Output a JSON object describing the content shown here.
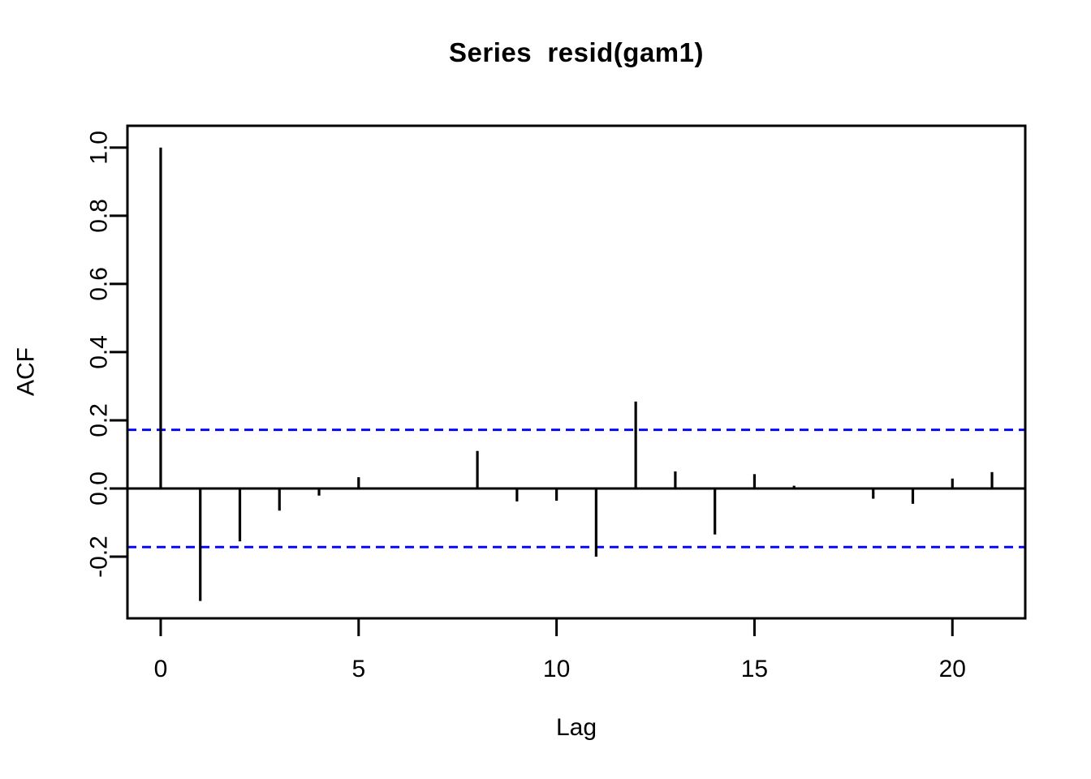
{
  "figure": {
    "background": "#FFFFFF"
  },
  "chart_data": {
    "type": "bar",
    "chart_kind": "autocorrelation-function",
    "title": "Series  resid(gam1)",
    "xlabel": "Lag",
    "ylabel": "ACF",
    "x": [
      0,
      1,
      2,
      3,
      4,
      5,
      6,
      7,
      8,
      9,
      10,
      11,
      12,
      13,
      14,
      15,
      16,
      17,
      18,
      19,
      20,
      21
    ],
    "values": [
      1.0,
      -0.33,
      -0.155,
      -0.065,
      -0.021,
      0.033,
      0.002,
      0.002,
      0.11,
      -0.038,
      -0.036,
      -0.2,
      0.255,
      0.05,
      -0.135,
      0.042,
      0.008,
      0.001,
      -0.03,
      -0.045,
      0.029,
      0.048
    ],
    "confidence_band_upper": 0.172,
    "confidence_band_lower": -0.172,
    "xlim": [
      -0.84,
      21.84
    ],
    "ylim": [
      -0.381,
      1.064
    ],
    "xticks": [
      {
        "v": 0,
        "label": "0"
      },
      {
        "v": 5,
        "label": "5"
      },
      {
        "v": 10,
        "label": "10"
      },
      {
        "v": 15,
        "label": "15"
      },
      {
        "v": 20,
        "label": "20"
      }
    ],
    "yticks": [
      {
        "v": -0.2,
        "label": "-0.2"
      },
      {
        "v": 0.0,
        "label": "0.0"
      },
      {
        "v": 0.2,
        "label": "0.2"
      },
      {
        "v": 0.4,
        "label": "0.4"
      },
      {
        "v": 0.6,
        "label": "0.6"
      },
      {
        "v": 0.8,
        "label": "0.8"
      },
      {
        "v": 1.0,
        "label": "1.0"
      }
    ],
    "grid": false,
    "legend": null,
    "colors": {
      "spike": "#000000",
      "confidence_band": "#0000FF",
      "axis": "#000000",
      "title": "#000000",
      "background": "#FFFFFF"
    }
  }
}
